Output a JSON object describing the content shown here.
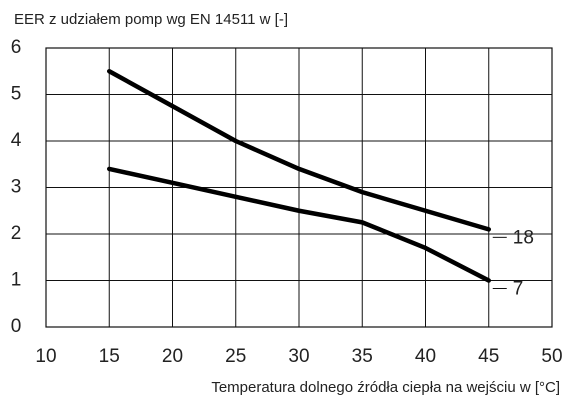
{
  "chart_data": {
    "type": "line",
    "title": "EER z udziałem pomp wg EN 14511 w [-]",
    "x_label": "Temperatura dolnego źródła ciepła na wejściu w [°C]",
    "x": [
      15,
      20,
      25,
      30,
      35,
      40,
      45
    ],
    "series": [
      {
        "name": "18",
        "color": "#000000",
        "values": [
          5.5,
          4.75,
          4.0,
          3.4,
          2.9,
          2.5,
          2.1
        ]
      },
      {
        "name": "7",
        "color": "#000000",
        "values": [
          3.4,
          3.1,
          2.8,
          2.5,
          2.25,
          1.7,
          1.0
        ]
      }
    ],
    "xlim": [
      10,
      50
    ],
    "xticks": [
      10,
      15,
      20,
      25,
      30,
      35,
      40,
      45,
      50
    ],
    "ylim": [
      0,
      6
    ],
    "yticks": [
      0,
      1,
      2,
      3,
      4,
      5,
      6
    ],
    "grid": true
  }
}
